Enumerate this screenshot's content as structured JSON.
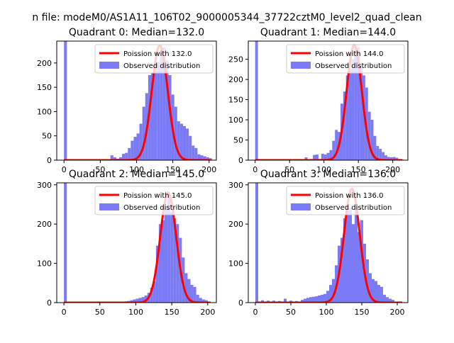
{
  "suptitle": "n file: modeM0/AS1A11_106T02_9000005344_37722cztM0_level2_quad_clean",
  "colors": {
    "observed": "#7b7bf5",
    "poisson": "#ff0000",
    "axis": "#000000"
  },
  "chart_data": [
    {
      "type": "bar",
      "title": "Quadrant 0: Median=132.0",
      "xlim": [
        -10,
        210
      ],
      "ylim": [
        0,
        245
      ],
      "xticks": [
        0,
        50,
        100,
        150,
        200
      ],
      "yticks": [
        0,
        50,
        100,
        150,
        200
      ],
      "legend_position": "upper right",
      "legend": {
        "line": "Poission with 132.0",
        "bars": "Observed distribution"
      },
      "poisson_mean": 132.0,
      "poisson_peak": 236,
      "bins": [
        {
          "x": 0,
          "y": 245
        },
        {
          "x": 64,
          "y": 10
        },
        {
          "x": 68,
          "y": 6
        },
        {
          "x": 72,
          "y": 3
        },
        {
          "x": 76,
          "y": 6
        },
        {
          "x": 80,
          "y": 13
        },
        {
          "x": 84,
          "y": 15
        },
        {
          "x": 88,
          "y": 25
        },
        {
          "x": 92,
          "y": 40
        },
        {
          "x": 96,
          "y": 48
        },
        {
          "x": 100,
          "y": 55
        },
        {
          "x": 104,
          "y": 75
        },
        {
          "x": 108,
          "y": 110
        },
        {
          "x": 112,
          "y": 138
        },
        {
          "x": 116,
          "y": 175
        },
        {
          "x": 120,
          "y": 180
        },
        {
          "x": 124,
          "y": 200
        },
        {
          "x": 128,
          "y": 202
        },
        {
          "x": 132,
          "y": 222
        },
        {
          "x": 136,
          "y": 232
        },
        {
          "x": 140,
          "y": 205
        },
        {
          "x": 144,
          "y": 175
        },
        {
          "x": 148,
          "y": 135
        },
        {
          "x": 152,
          "y": 110
        },
        {
          "x": 156,
          "y": 80
        },
        {
          "x": 160,
          "y": 75
        },
        {
          "x": 164,
          "y": 70
        },
        {
          "x": 168,
          "y": 65
        },
        {
          "x": 172,
          "y": 50
        },
        {
          "x": 176,
          "y": 30
        },
        {
          "x": 180,
          "y": 25
        },
        {
          "x": 184,
          "y": 12
        },
        {
          "x": 188,
          "y": 10
        },
        {
          "x": 192,
          "y": 8
        },
        {
          "x": 196,
          "y": 6
        },
        {
          "x": 200,
          "y": 4
        }
      ]
    },
    {
      "type": "bar",
      "title": "Quadrant 1: Median=144.0",
      "xlim": [
        -10,
        222
      ],
      "ylim": [
        0,
        295
      ],
      "xticks": [
        0,
        50,
        100,
        150,
        200
      ],
      "yticks": [
        0,
        50,
        100,
        150,
        200,
        250
      ],
      "legend_position": "upper right",
      "legend": {
        "line": "Poission with 144.0",
        "bars": "Observed distribution"
      },
      "poisson_mean": 144.0,
      "poisson_peak": 285,
      "bins": [
        {
          "x": 0,
          "y": 295
        },
        {
          "x": 72,
          "y": 7
        },
        {
          "x": 76,
          "y": 2
        },
        {
          "x": 80,
          "y": 3
        },
        {
          "x": 84,
          "y": 13
        },
        {
          "x": 88,
          "y": 14
        },
        {
          "x": 92,
          "y": 3
        },
        {
          "x": 96,
          "y": 16
        },
        {
          "x": 100,
          "y": 14
        },
        {
          "x": 104,
          "y": 18
        },
        {
          "x": 108,
          "y": 25
        },
        {
          "x": 112,
          "y": 48
        },
        {
          "x": 116,
          "y": 75
        },
        {
          "x": 120,
          "y": 70
        },
        {
          "x": 124,
          "y": 140
        },
        {
          "x": 128,
          "y": 170
        },
        {
          "x": 132,
          "y": 210
        },
        {
          "x": 136,
          "y": 225
        },
        {
          "x": 140,
          "y": 250
        },
        {
          "x": 144,
          "y": 275
        },
        {
          "x": 148,
          "y": 280
        },
        {
          "x": 152,
          "y": 230
        },
        {
          "x": 156,
          "y": 210
        },
        {
          "x": 160,
          "y": 180
        },
        {
          "x": 164,
          "y": 120
        },
        {
          "x": 168,
          "y": 100
        },
        {
          "x": 172,
          "y": 60
        },
        {
          "x": 176,
          "y": 35
        },
        {
          "x": 180,
          "y": 28
        },
        {
          "x": 184,
          "y": 20
        },
        {
          "x": 188,
          "y": 12
        },
        {
          "x": 192,
          "y": 8
        },
        {
          "x": 196,
          "y": 7
        },
        {
          "x": 200,
          "y": 8
        },
        {
          "x": 204,
          "y": 6
        }
      ]
    },
    {
      "type": "bar",
      "title": "Quadrant 2: Median=145.0",
      "xlim": [
        -10,
        212
      ],
      "ylim": [
        0,
        305
      ],
      "xticks": [
        0,
        50,
        100,
        150,
        200
      ],
      "yticks": [
        0,
        100,
        200,
        300
      ],
      "legend_position": "upper right",
      "legend": {
        "line": "Poission with 145.0",
        "bars": "Observed distribution"
      },
      "poisson_mean": 145.0,
      "poisson_peak": 280,
      "bins": [
        {
          "x": 0,
          "y": 305
        },
        {
          "x": 80,
          "y": 2
        },
        {
          "x": 84,
          "y": 3
        },
        {
          "x": 88,
          "y": 4
        },
        {
          "x": 92,
          "y": 6
        },
        {
          "x": 96,
          "y": 8
        },
        {
          "x": 100,
          "y": 10
        },
        {
          "x": 104,
          "y": 12
        },
        {
          "x": 108,
          "y": 14
        },
        {
          "x": 112,
          "y": 18
        },
        {
          "x": 116,
          "y": 25
        },
        {
          "x": 120,
          "y": 38
        },
        {
          "x": 124,
          "y": 55
        },
        {
          "x": 128,
          "y": 145
        },
        {
          "x": 132,
          "y": 200
        },
        {
          "x": 136,
          "y": 210
        },
        {
          "x": 140,
          "y": 245
        },
        {
          "x": 144,
          "y": 275
        },
        {
          "x": 148,
          "y": 230
        },
        {
          "x": 152,
          "y": 215
        },
        {
          "x": 156,
          "y": 200
        },
        {
          "x": 160,
          "y": 165
        },
        {
          "x": 164,
          "y": 115
        },
        {
          "x": 168,
          "y": 75
        },
        {
          "x": 172,
          "y": 60
        },
        {
          "x": 176,
          "y": 45
        },
        {
          "x": 180,
          "y": 40
        },
        {
          "x": 184,
          "y": 20
        },
        {
          "x": 188,
          "y": 12
        },
        {
          "x": 192,
          "y": 8
        },
        {
          "x": 196,
          "y": 6
        }
      ]
    },
    {
      "type": "bar",
      "title": "Quadrant 3: Median=136.0",
      "xlim": [
        -10,
        215
      ],
      "ylim": [
        0,
        305
      ],
      "xticks": [
        0,
        50,
        100,
        150,
        200
      ],
      "yticks": [
        0,
        100,
        200,
        300
      ],
      "legend_position": "upper right",
      "legend": {
        "line": "Poission with 136.0",
        "bars": "Observed distribution"
      },
      "poisson_mean": 136.0,
      "poisson_peak": 290,
      "bins": [
        {
          "x": 0,
          "y": 305
        },
        {
          "x": 8,
          "y": 6
        },
        {
          "x": 16,
          "y": 5
        },
        {
          "x": 24,
          "y": 5
        },
        {
          "x": 32,
          "y": 4
        },
        {
          "x": 40,
          "y": 10
        },
        {
          "x": 48,
          "y": 5
        },
        {
          "x": 56,
          "y": 4
        },
        {
          "x": 64,
          "y": 7
        },
        {
          "x": 68,
          "y": 10
        },
        {
          "x": 72,
          "y": 12
        },
        {
          "x": 76,
          "y": 14
        },
        {
          "x": 80,
          "y": 15
        },
        {
          "x": 84,
          "y": 16
        },
        {
          "x": 88,
          "y": 18
        },
        {
          "x": 92,
          "y": 20
        },
        {
          "x": 96,
          "y": 22
        },
        {
          "x": 100,
          "y": 30
        },
        {
          "x": 104,
          "y": 45
        },
        {
          "x": 108,
          "y": 60
        },
        {
          "x": 112,
          "y": 95
        },
        {
          "x": 116,
          "y": 145
        },
        {
          "x": 120,
          "y": 165
        },
        {
          "x": 124,
          "y": 215
        },
        {
          "x": 128,
          "y": 235
        },
        {
          "x": 132,
          "y": 240
        },
        {
          "x": 136,
          "y": 200
        },
        {
          "x": 140,
          "y": 250
        },
        {
          "x": 144,
          "y": 180
        },
        {
          "x": 148,
          "y": 210
        },
        {
          "x": 152,
          "y": 150
        },
        {
          "x": 156,
          "y": 110
        },
        {
          "x": 160,
          "y": 75
        },
        {
          "x": 164,
          "y": 60
        },
        {
          "x": 168,
          "y": 55
        },
        {
          "x": 172,
          "y": 45
        },
        {
          "x": 176,
          "y": 40
        },
        {
          "x": 180,
          "y": 20
        },
        {
          "x": 184,
          "y": 14
        },
        {
          "x": 188,
          "y": 10
        },
        {
          "x": 192,
          "y": 7
        }
      ]
    }
  ]
}
